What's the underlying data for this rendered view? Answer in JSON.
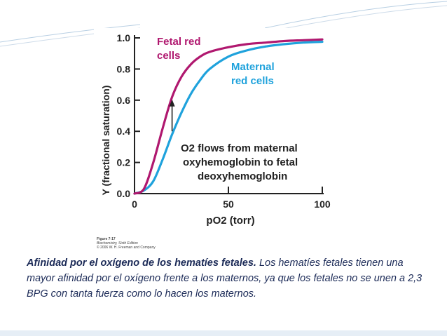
{
  "chart_data": {
    "type": "line",
    "ylabel": "Y (fractional saturation)",
    "xlabel": "pO2 (torr)",
    "xlim": [
      0,
      100
    ],
    "ylim": [
      0,
      1.0
    ],
    "x_ticks": [
      "0",
      "50",
      "100"
    ],
    "y_ticks": [
      "0.0",
      "0.2",
      "0.4",
      "0.6",
      "0.8",
      "1.0"
    ],
    "grid": false,
    "series": [
      {
        "name": "Fetal red cells",
        "color": "#b0186f",
        "x": [
          0,
          5,
          10,
          15,
          20,
          25,
          30,
          35,
          40,
          50,
          60,
          70,
          80,
          90,
          100
        ],
        "y": [
          0,
          0.03,
          0.2,
          0.42,
          0.62,
          0.75,
          0.83,
          0.88,
          0.91,
          0.94,
          0.96,
          0.97,
          0.98,
          0.985,
          0.99
        ]
      },
      {
        "name": "Maternal red cells",
        "color": "#1fa2dc",
        "x": [
          0,
          5,
          10,
          15,
          20,
          25,
          30,
          35,
          40,
          50,
          60,
          70,
          80,
          90,
          100
        ],
        "y": [
          0,
          0.02,
          0.08,
          0.22,
          0.38,
          0.52,
          0.64,
          0.73,
          0.8,
          0.88,
          0.92,
          0.945,
          0.96,
          0.97,
          0.975
        ]
      }
    ],
    "annotations": [
      {
        "text": "O2 flows from maternal",
        "x": 52,
        "y": 0.23
      },
      {
        "text": "oxyhemoglobin to fetal",
        "x": 52,
        "y": 0.15
      },
      {
        "text": "deoxyhemoglobin",
        "x": 52,
        "y": 0.07
      }
    ],
    "arrow": {
      "x": 20,
      "from_y": 0.4,
      "to_y": 0.6
    }
  },
  "figure_credit": {
    "line1": "Figure 7-17",
    "line2": "Biochemistry, Sixth Edition",
    "line3": "© 2006 W. H. Freeman and Company"
  },
  "caption": {
    "bold": "Afinidad por el oxígeno de los hematíes fetales.",
    "text": " Los hematíes fetales tienen una mayor afinidad por el oxígeno frente a los maternos, ya que los fetales no se unen a 2,3 BPG con tanta fuerza como lo hacen los maternos."
  },
  "colors": {
    "fetal": "#b0186f",
    "maternal": "#1fa2dc",
    "caption": "#1b2a57"
  }
}
